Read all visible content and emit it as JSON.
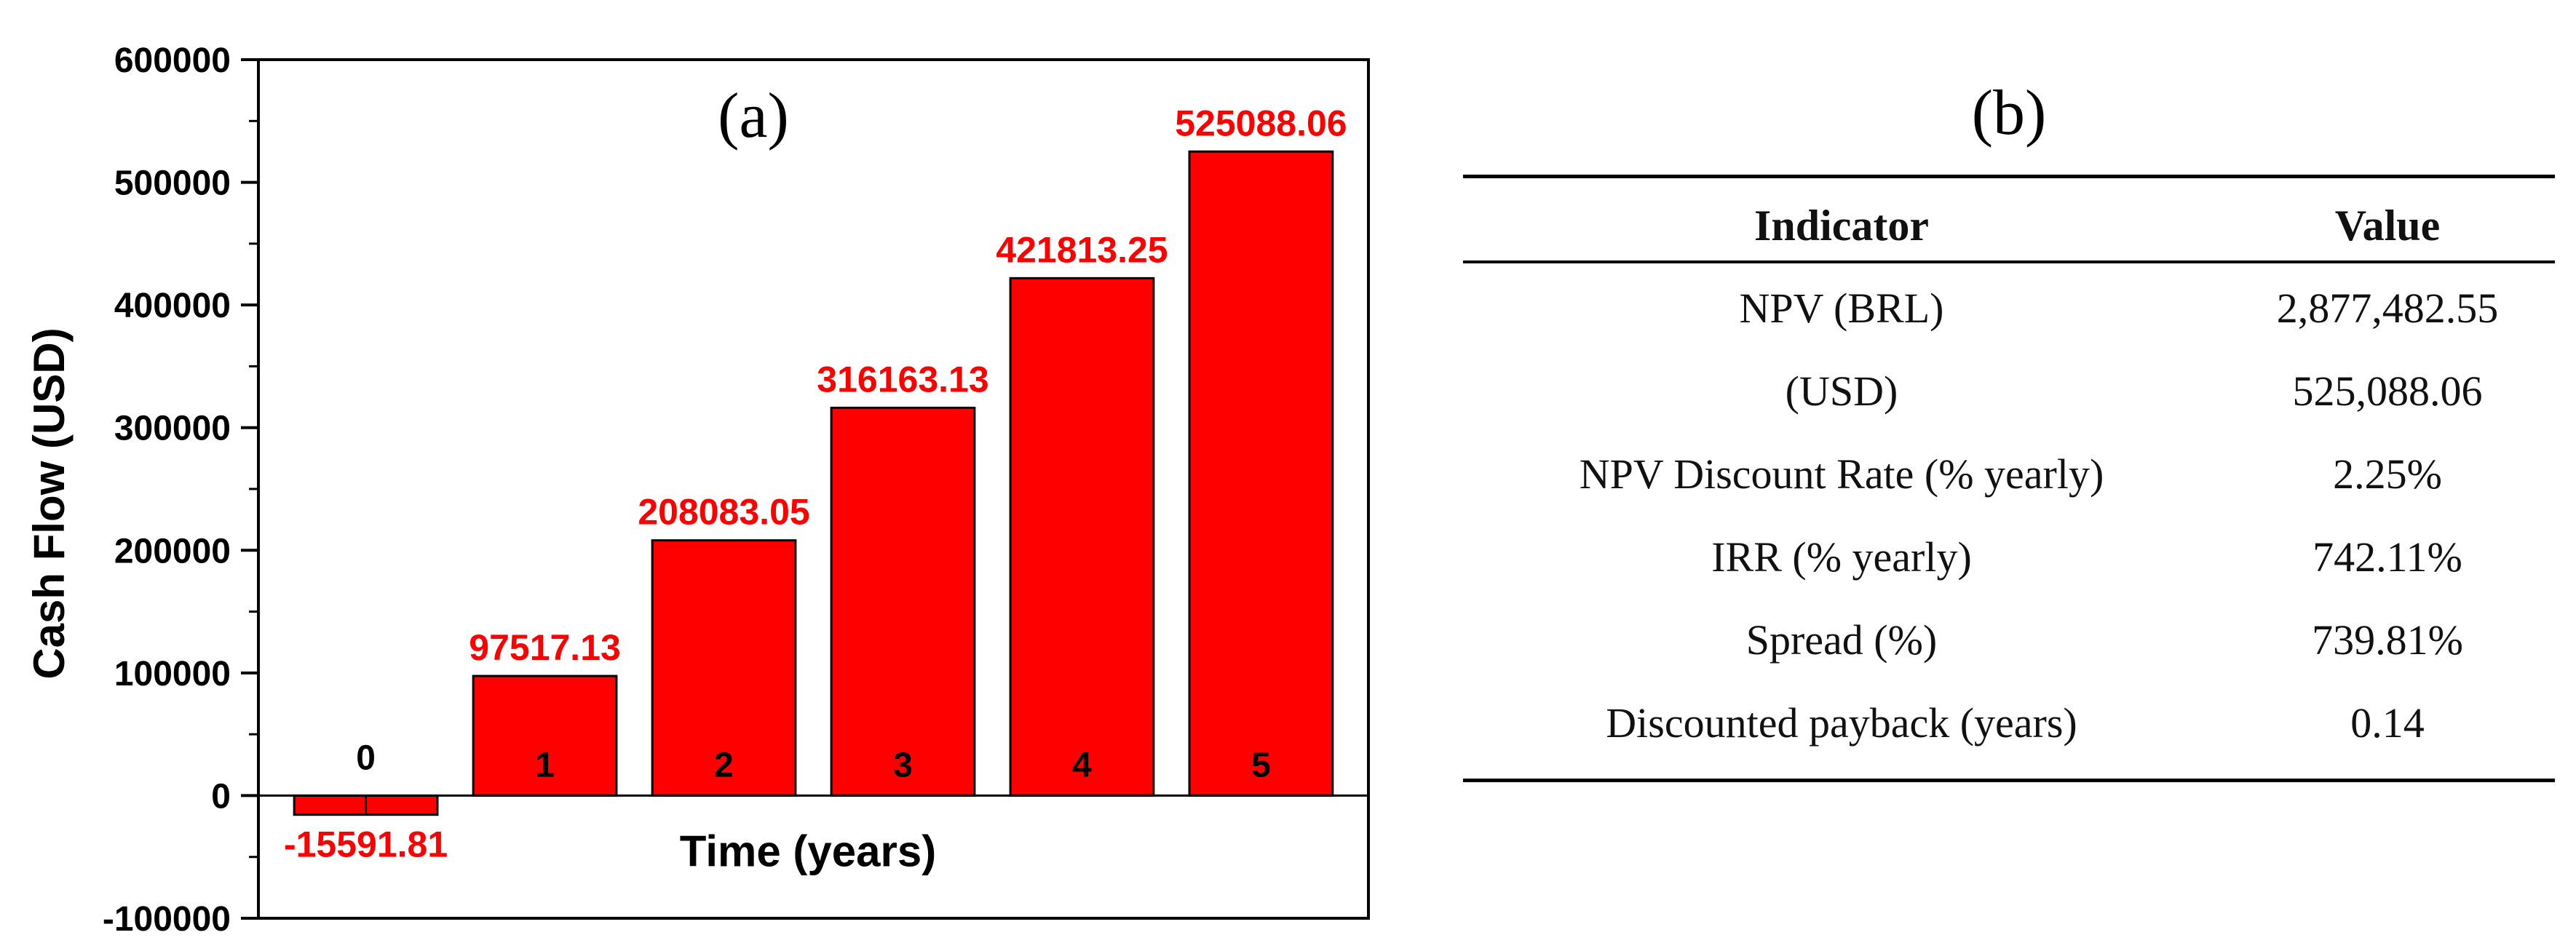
{
  "panel_a": {
    "label": "(a)"
  },
  "panel_b": {
    "label": "(b)"
  },
  "chart_data": {
    "type": "bar",
    "xlabel": "Time (years)",
    "ylabel": "Cash Flow (USD)",
    "categories": [
      "0",
      "1",
      "2",
      "3",
      "4",
      "5"
    ],
    "values": [
      -15591.81,
      97517.13,
      208083.05,
      316163.13,
      421813.25,
      525088.06
    ],
    "data_labels": [
      "-15591.81",
      "97517.13",
      "208083.05",
      "316163.13",
      "421813.25",
      "525088.06"
    ],
    "ylim": [
      -100000,
      600000
    ],
    "yticks": [
      -100000,
      0,
      100000,
      200000,
      300000,
      400000,
      500000,
      600000
    ],
    "ytick_labels": [
      "-100000",
      "0",
      "100000",
      "200000",
      "300000",
      "400000",
      "500000",
      "600000"
    ],
    "bar_color": "#ff0000",
    "label_color": "#ff0000",
    "grid": false
  },
  "table": {
    "headers": {
      "indicator": "Indicator",
      "value": "Value"
    },
    "rows": [
      {
        "indicator": "NPV (BRL)",
        "value": "2,877,482.55"
      },
      {
        "indicator": "(USD)",
        "value": "525,088.06"
      },
      {
        "indicator": "NPV Discount Rate (% yearly)",
        "value": "2.25%"
      },
      {
        "indicator": "IRR (% yearly)",
        "value": "742.11%"
      },
      {
        "indicator": "Spread (%)",
        "value": "739.81%"
      },
      {
        "indicator": "Discounted payback (years)",
        "value": "0.14"
      }
    ]
  }
}
